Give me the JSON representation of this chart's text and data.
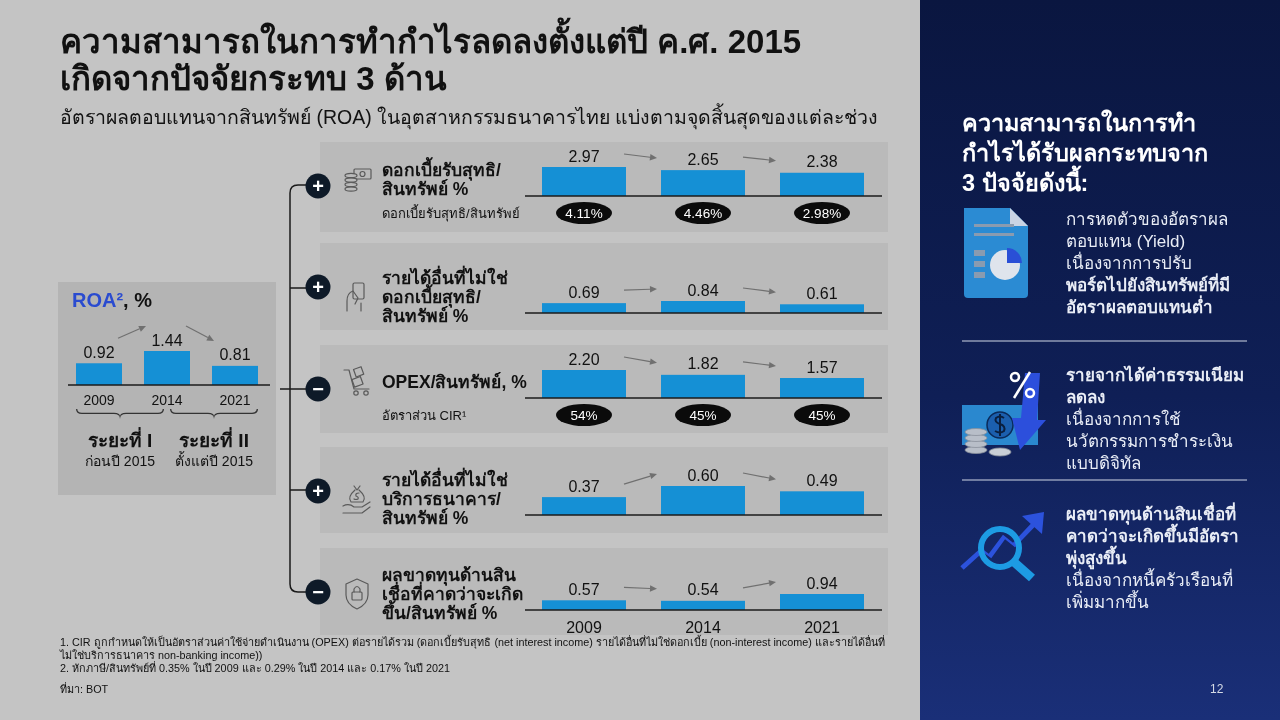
{
  "chart_data": [
    {
      "type": "other",
      "title": "ความสามารถในการทำกำไรลดลงตั้งแต่ปี ค.ศ. 2015 เกิดจากปัจจัยกระทบ 3 ด้าน",
      "subtitle": "อัตราผลตอบแทนจากสินทรัพย์ (ROA) ในอุตสาหกรรมธนาคารไทย แบ่งตามจุดสิ้นสุดของแต่ละช่วง",
      "annotations": [
        "1. CIR ถูกกำหนดให้เป็นอัตราส่วนค่าใช้จ่ายดำเนินงาน (OPEX) ต่อรายได้รวม (ดอกเบี้ยรับสุทธิ (net interest income) รายได้อื่นที่ไม่ใช่ดอกเบี้ย (non-interest income) และรายได้อื่นที่ไม่ใช่บริการธนาคาร non-banking income))",
        "2. หักภาษี/สินทรัพย์ที่ 0.35% ในปี 2009 และ 0.29% ในปี 2014 และ 0.17% ในปี 2021",
        "ที่มา: BOT",
        "12"
      ]
    },
    {
      "type": "bar",
      "title": "ROA², %",
      "categories": [
        "2009",
        "2014",
        "2021"
      ],
      "values": [
        0.92,
        1.44,
        0.81
      ],
      "color": "#1590d5",
      "data_labels": true,
      "annotations": [
        "ระยะที่ I",
        "ก่อนปี 2015",
        "ระยะที่ II",
        "ตั้งแต่ปี 2015"
      ]
    },
    {
      "type": "bar",
      "title": "ดอกเบี้ยรับสุทธิ/สินทรัพย์ %",
      "categories": [
        "2009",
        "2014",
        "2021"
      ],
      "values": [
        2.97,
        2.65,
        2.38
      ],
      "color": "#1590d5",
      "data_labels": true,
      "tick_labels": false,
      "annotations": [
        "+",
        "ดอกเบี้ยรับสุทธิ/สินทรัพย์",
        "4.11%",
        "4.46%",
        "2.98%"
      ]
    },
    {
      "type": "bar",
      "title": "รายได้อื่นที่ไม่ใช่ดอกเบี้ยสุทธิ/สินทรัพย์ %",
      "categories": [
        "2009",
        "2014",
        "2021"
      ],
      "values": [
        0.69,
        0.84,
        0.61
      ],
      "color": "#1590d5",
      "data_labels": true,
      "tick_labels": false,
      "annotations": [
        "+"
      ]
    },
    {
      "type": "bar",
      "title": "OPEX/สินทรัพย์, %",
      "categories": [
        "2009",
        "2014",
        "2021"
      ],
      "values": [
        2.2,
        1.82,
        1.57
      ],
      "color": "#1590d5",
      "value_labels": [
        "2.20",
        "1.82",
        "1.57"
      ],
      "tick_labels": false,
      "annotations": [
        "−",
        "อัตราส่วน CIR¹",
        "54%",
        "45%",
        "45%"
      ]
    },
    {
      "type": "bar",
      "title": "รายได้อื่นที่ไม่ใช่บริการธนาคาร/สินทรัพย์ %",
      "categories": [
        "2009",
        "2014",
        "2021"
      ],
      "values": [
        0.37,
        0.6,
        0.49
      ],
      "color": "#1590d5",
      "value_labels": [
        "0.37",
        "0.60",
        "0.49"
      ],
      "tick_labels": false,
      "annotations": [
        "+"
      ]
    },
    {
      "type": "bar",
      "title": "ผลขาดทุนด้านสินเชื่อที่คาดว่าจะเกิดขึ้น/สินทรัพย์ %",
      "categories": [
        "2009",
        "2014",
        "2021"
      ],
      "values": [
        0.57,
        0.54,
        0.94
      ],
      "color": "#1590d5",
      "data_labels": true,
      "annotations": [
        "−"
      ]
    },
    {
      "type": "other",
      "title": "ความสามารถในการทำกำไรได้รับผลกระทบจาก 3 ปัจจัยดังนี้:",
      "annotations": [
        "การหดตัวของอัตราผลตอบแทน (Yield) เนื่องจากการปรับ",
        "พอร์ตไปยังสินทรัพย์ที่มีอัตราผลตอบแทนต่ำ",
        "รายจากได้ค่าธรรมเนียมลดลง",
        "เนื่องจากการใช้นวัตกรรมการชำระเงินแบบดิจิทัล",
        "ผลขาดทุนด้านสินเชื่อที่คาดว่าจะเกิดขึ้นมีอัตราพุ่งสูงขึ้น",
        "เนื่องจากหนี้ครัวเรือนที่เพิ่มมากขึ้น"
      ]
    }
  ]
}
